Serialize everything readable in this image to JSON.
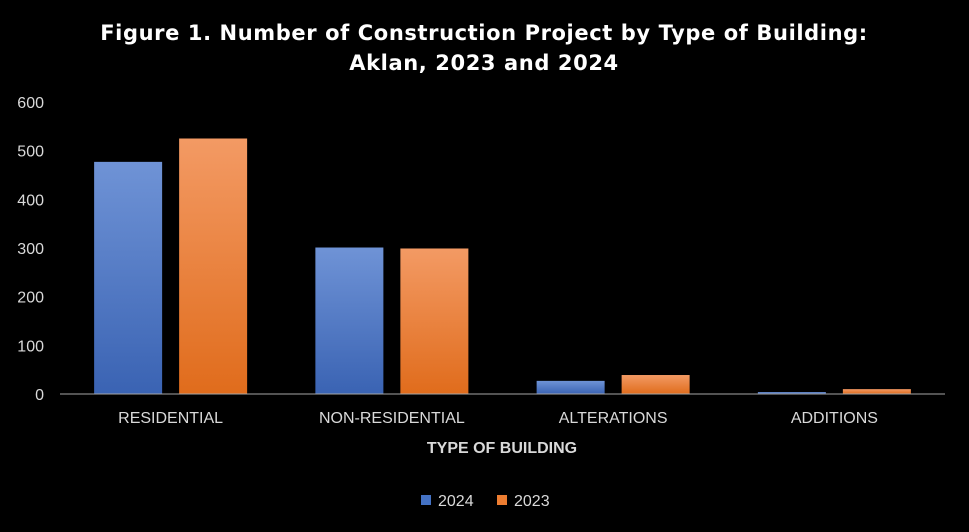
{
  "chart_data": {
    "type": "bar",
    "title": "Figure 1. Number of Construction Project by Type of Building:",
    "subtitle": "Aklan, 2023 and 2024",
    "xlabel": "TYPE OF BUILDING",
    "ylabel": "",
    "categories": [
      "RESIDENTIAL",
      "NON-RESIDENTIAL",
      "ALTERATIONS",
      "ADDITIONS"
    ],
    "series": [
      {
        "name": "2024",
        "values": [
          477,
          301,
          27,
          4
        ],
        "color": "#4472c4"
      },
      {
        "name": "2023",
        "values": [
          525,
          299,
          39,
          10
        ],
        "color": "#ed7d31"
      }
    ],
    "ylim": [
      0,
      600
    ],
    "yticks": [
      "0",
      "100",
      "200",
      "300",
      "400",
      "500",
      "600"
    ],
    "grid": false,
    "legend": "bottom-center",
    "background": "#000000",
    "axis_color": "#a6a6a6"
  }
}
